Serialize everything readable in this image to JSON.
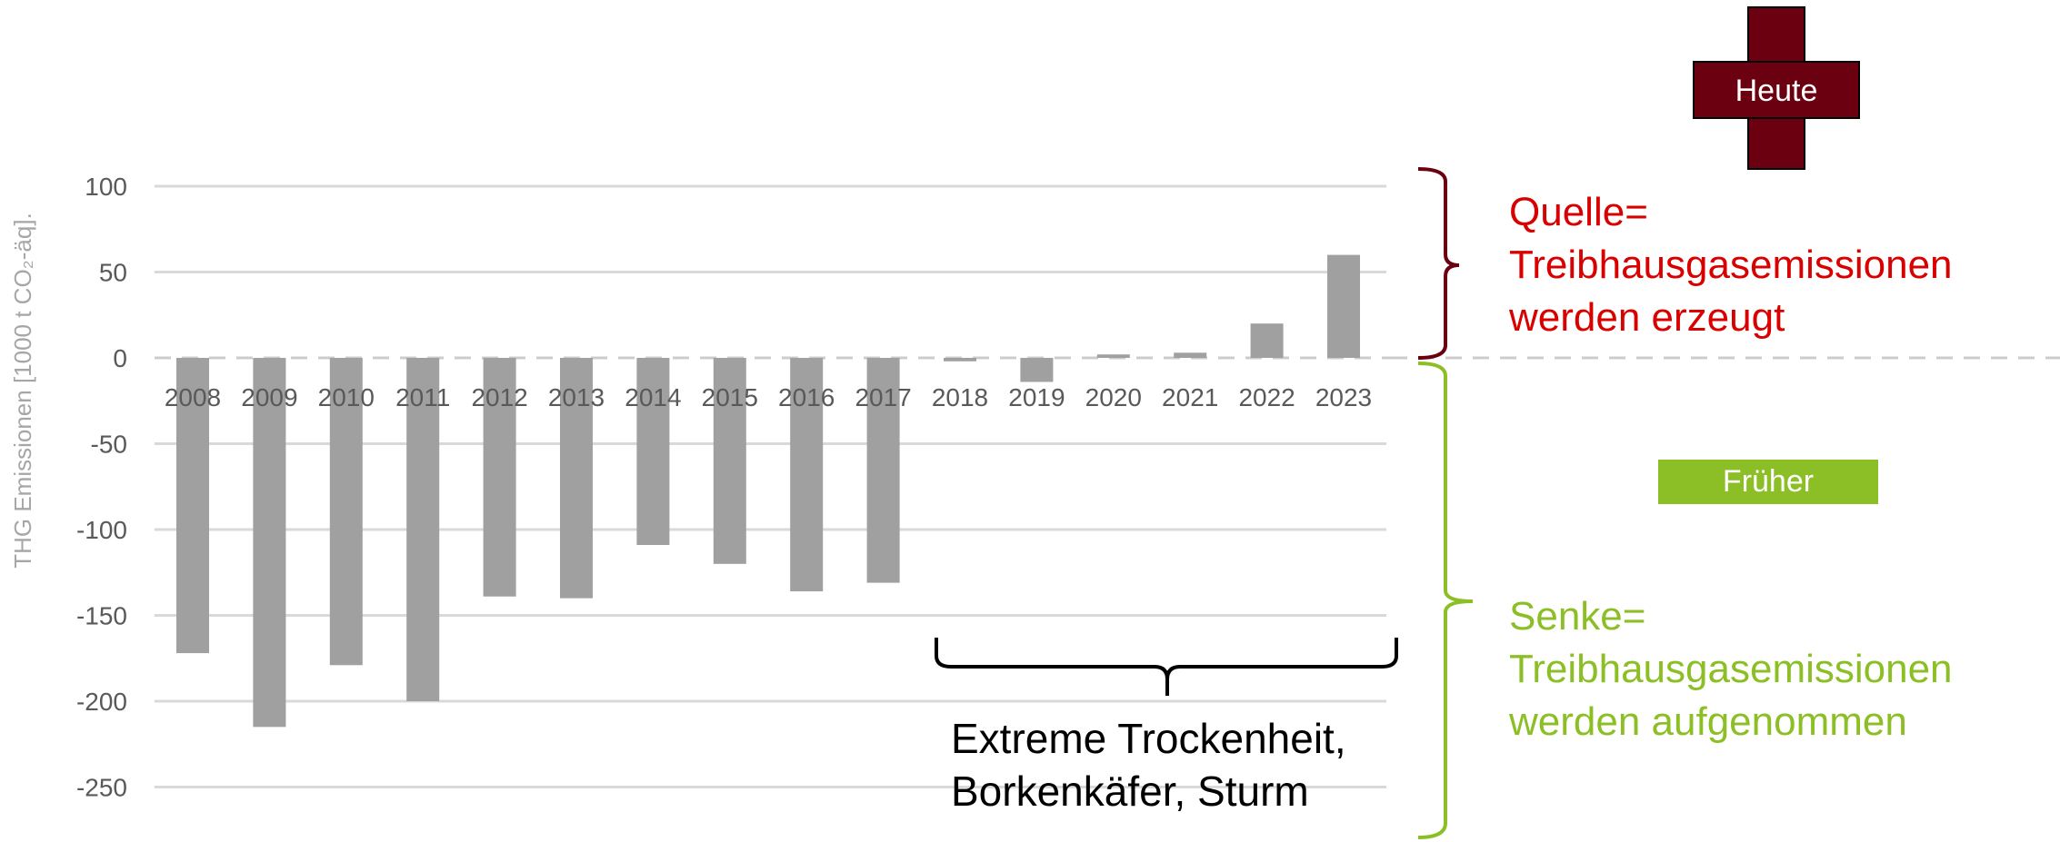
{
  "chart_data": {
    "type": "bar",
    "title": "",
    "xlabel": "",
    "ylabel": "THG Emissionen [1000 t CO₂-äq].",
    "ylim": [
      -260,
      105
    ],
    "yticks": [
      100,
      50,
      0,
      -50,
      -100,
      -150,
      -200,
      -250
    ],
    "grid": true,
    "categories": [
      "2008",
      "2009",
      "2010",
      "2011",
      "2012",
      "2013",
      "2014",
      "2015",
      "2016",
      "2017",
      "2018",
      "2019",
      "2020",
      "2021",
      "2022",
      "2023"
    ],
    "values": [
      -172,
      -215,
      -179,
      -200,
      -139,
      -140,
      -109,
      -120,
      -136,
      -131,
      -2,
      -14,
      2,
      3,
      20,
      60
    ],
    "bar_color": "#a0a0a0"
  },
  "annotations": {
    "heute": "Heute",
    "frueher": "Früher",
    "source_lines": [
      "Quelle=",
      "Treibhausgasemissionen",
      "werden erzeugt"
    ],
    "sink_lines": [
      "Senke=",
      "Treibhausgasemissionen",
      "werden aufgenommen"
    ],
    "event_lines": [
      "Extreme Trockenheit,",
      "Borkenkäfer, Sturm"
    ]
  },
  "colors": {
    "source": "#d90000",
    "sink": "#8cbf26",
    "heute": "#6b0010",
    "grid": "#d9d9d9",
    "zero_line": "#cccccc"
  }
}
